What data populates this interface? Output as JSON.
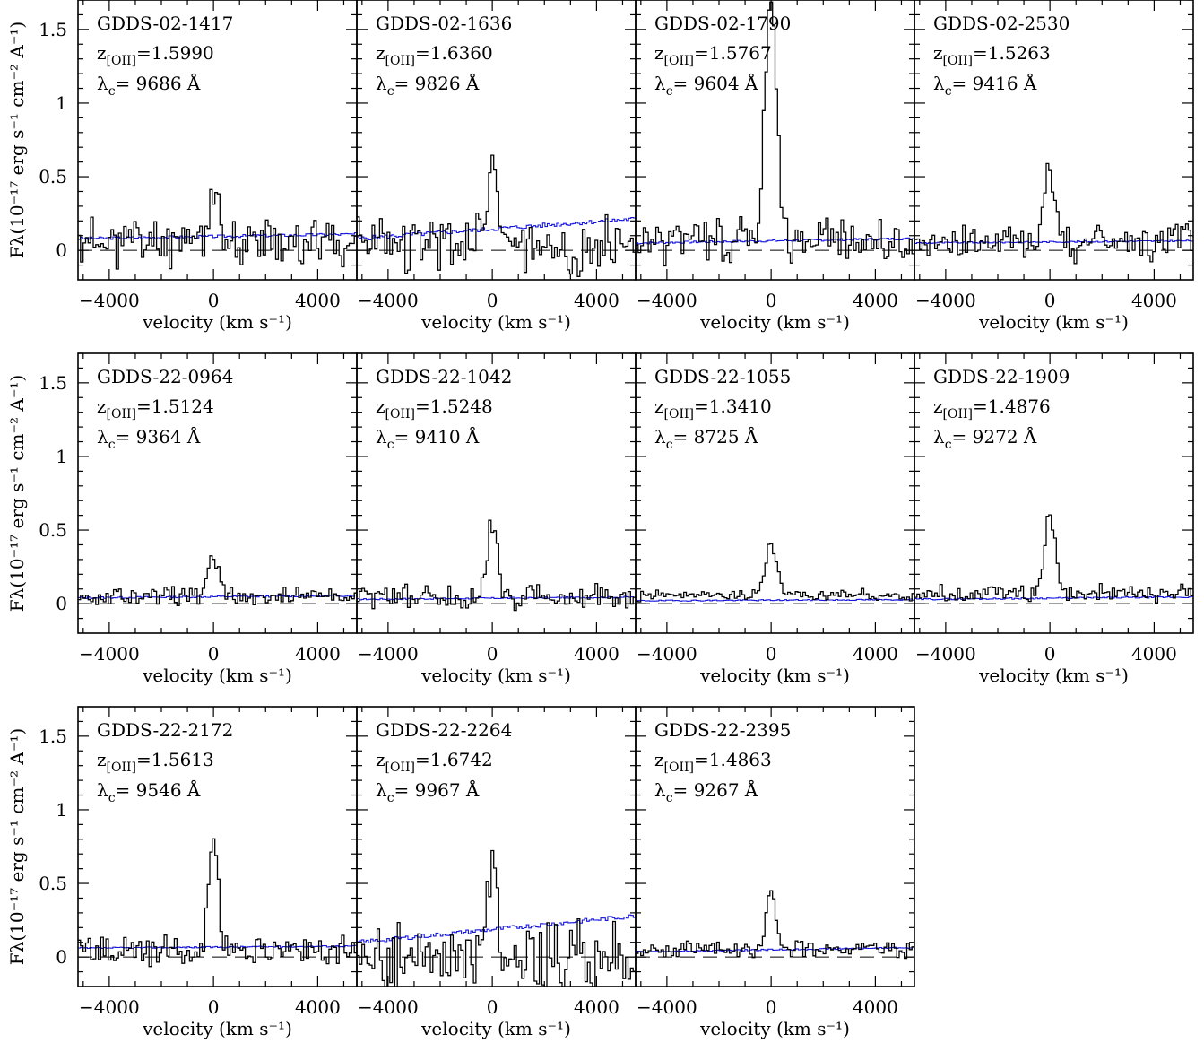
{
  "chart_data": {
    "type": "line",
    "xlabel": "velocity (km s⁻¹)",
    "ylabel": "Fλ(10⁻¹⁷ erg s⁻¹ cm⁻² A⁻¹)",
    "xlim": [
      -5200,
      5500
    ],
    "ylim": [
      -0.2,
      1.7
    ],
    "xticks": [
      -4000,
      0,
      4000
    ],
    "xtick_labels": [
      "−4000",
      "0",
      "4000"
    ],
    "yticks": [
      0,
      0.5,
      1,
      1.5
    ],
    "ytick_labels": [
      "0",
      "0.5",
      "1",
      "1.5"
    ],
    "zero_line": "dashed",
    "colors": {
      "spectrum": "#000000",
      "error": "#1515e0"
    },
    "panels": [
      {
        "name": "GDDS-02-1417",
        "z_label": "z",
        "z_sub": "[OII]",
        "z": "=1.5990",
        "lam_label": "λ",
        "lam_sub": "c",
        "lam": "= 9686 Å",
        "series": [
          {
            "name": "spectrum",
            "peak": 0.4,
            "width": 150,
            "noise": 0.13,
            "seed": 11,
            "base": 0.06
          },
          {
            "name": "error",
            "level": 0.08,
            "slope": 0.2,
            "wobble": 0.02,
            "seed": 3
          }
        ]
      },
      {
        "name": "GDDS-02-1636",
        "z_label": "z",
        "z_sub": "[OII]",
        "z": "=1.6360",
        "lam_label": "λ",
        "lam_sub": "c",
        "lam": "= 9826 Å",
        "series": [
          {
            "name": "spectrum",
            "peak": 0.58,
            "width": 200,
            "noise": 0.15,
            "seed": 23,
            "base": 0.04
          },
          {
            "name": "error",
            "level": 0.08,
            "slope": 0.9,
            "wobble": 0.03,
            "seed": 5
          }
        ]
      },
      {
        "name": "GDDS-02-1790",
        "z_label": "z",
        "z_sub": "[OII]",
        "z": "=1.5767",
        "lam_label": "λ",
        "lam_sub": "c",
        "lam": "= 9604 Å",
        "series": [
          {
            "name": "spectrum",
            "peak": 1.62,
            "width": 230,
            "noise": 0.12,
            "seed": 31,
            "base": 0.07
          },
          {
            "name": "error",
            "level": 0.05,
            "slope": 0.2,
            "wobble": 0.015,
            "seed": 7
          }
        ]
      },
      {
        "name": "GDDS-02-2530",
        "z_label": "z",
        "z_sub": "[OII]",
        "z": "=1.5263",
        "lam_label": "λ",
        "lam_sub": "c",
        "lam": "= 9416 Å",
        "series": [
          {
            "name": "spectrum",
            "peak": 0.52,
            "width": 190,
            "noise": 0.1,
            "seed": 41,
            "base": 0.05
          },
          {
            "name": "error",
            "level": 0.05,
            "slope": 0.1,
            "wobble": 0.01,
            "seed": 9
          }
        ]
      },
      {
        "name": "GDDS-22-0964",
        "z_label": "z",
        "z_sub": "[OII]",
        "z": "=1.5124",
        "lam_label": "λ",
        "lam_sub": "c",
        "lam": "= 9364 Å",
        "series": [
          {
            "name": "spectrum",
            "peak": 0.28,
            "width": 220,
            "noise": 0.05,
            "seed": 53,
            "base": 0.05
          },
          {
            "name": "error",
            "level": 0.04,
            "slope": 0.1,
            "wobble": 0.012,
            "seed": 13
          }
        ]
      },
      {
        "name": "GDDS-22-1042",
        "z_label": "z",
        "z_sub": "[OII]",
        "z": "=1.5248",
        "lam_label": "λ",
        "lam_sub": "c",
        "lam": "= 9410 Å",
        "series": [
          {
            "name": "spectrum",
            "peak": 0.5,
            "width": 190,
            "noise": 0.07,
            "seed": 61,
            "base": 0.04
          },
          {
            "name": "error",
            "level": 0.03,
            "slope": 0.1,
            "wobble": 0.01,
            "seed": 17
          }
        ]
      },
      {
        "name": "GDDS-22-1055",
        "z_label": "z",
        "z_sub": "[OII]",
        "z": "=1.3410",
        "lam_label": "λ",
        "lam_sub": "c",
        "lam": "= 8725 Å",
        "series": [
          {
            "name": "spectrum",
            "peak": 0.33,
            "width": 220,
            "noise": 0.03,
            "seed": 71,
            "base": 0.06
          },
          {
            "name": "error",
            "level": 0.02,
            "slope": 0.05,
            "wobble": 0.008,
            "seed": 19
          }
        ]
      },
      {
        "name": "GDDS-22-1909",
        "z_label": "z",
        "z_sub": "[OII]",
        "z": "=1.4876",
        "lam_label": "λ",
        "lam_sub": "c",
        "lam": "= 9272 Å",
        "series": [
          {
            "name": "spectrum",
            "peak": 0.52,
            "width": 220,
            "noise": 0.05,
            "seed": 83,
            "base": 0.07
          },
          {
            "name": "error",
            "level": 0.03,
            "slope": 0.1,
            "wobble": 0.01,
            "seed": 29
          }
        ]
      },
      {
        "name": "GDDS-22-2172",
        "z_label": "z",
        "z_sub": "[OII]",
        "z": "=1.5613",
        "lam_label": "λ",
        "lam_sub": "c",
        "lam": "= 9546 Å",
        "series": [
          {
            "name": "spectrum",
            "peak": 0.76,
            "width": 180,
            "noise": 0.08,
            "seed": 97,
            "base": 0.05
          },
          {
            "name": "error",
            "level": 0.06,
            "slope": 0.1,
            "wobble": 0.01,
            "seed": 37
          }
        ]
      },
      {
        "name": "GDDS-22-2264",
        "z_label": "z",
        "z_sub": "[OII]",
        "z": "=1.6742",
        "lam_label": "λ",
        "lam_sub": "c",
        "lam": "= 9967 Å",
        "series": [
          {
            "name": "spectrum",
            "peak": 0.76,
            "width": 170,
            "noise": 0.2,
            "seed": 101,
            "base": 0.0
          },
          {
            "name": "error",
            "level": 0.1,
            "slope": 1.2,
            "wobble": 0.03,
            "seed": 43
          }
        ]
      },
      {
        "name": "GDDS-22-2395",
        "z_label": "z",
        "z_sub": "[OII]",
        "z": "=1.4863",
        "lam_label": "λ",
        "lam_sub": "c",
        "lam": "= 9267 Å",
        "series": [
          {
            "name": "spectrum",
            "peak": 0.42,
            "width": 180,
            "noise": 0.04,
            "seed": 113,
            "base": 0.05
          },
          {
            "name": "error",
            "level": 0.035,
            "slope": 0.2,
            "wobble": 0.01,
            "seed": 47
          }
        ]
      }
    ]
  }
}
